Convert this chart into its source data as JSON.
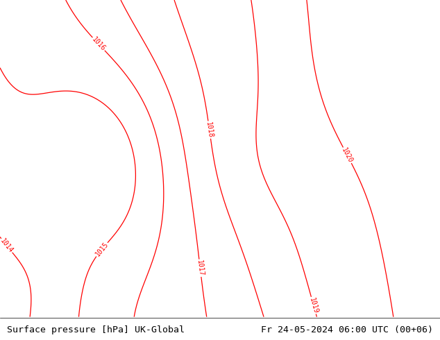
{
  "title_left": "Surface pressure [hPa] UK-Global",
  "title_right": "Fr 24-05-2024 06:00 UTC (00+06)",
  "title_fontsize": 9.5,
  "title_font": "monospace",
  "fig_width": 6.34,
  "fig_height": 4.9,
  "dpi": 100,
  "sea_color": "#c8c8c8",
  "land_color": "#b8e890",
  "border_color": "#505050",
  "isobar_color": "#ff0000",
  "isobar_linewidth": 0.9,
  "isobar_label_fontsize": 7,
  "isobar_label_color": "#ff0000",
  "isobar_values": [
    1014,
    1015,
    1016,
    1017,
    1018,
    1019,
    1020
  ],
  "bottom_bar_color": "#ffffff",
  "lon_min": -4.0,
  "lon_max": 21.0,
  "lat_min": 43.5,
  "lat_max": 59.0
}
